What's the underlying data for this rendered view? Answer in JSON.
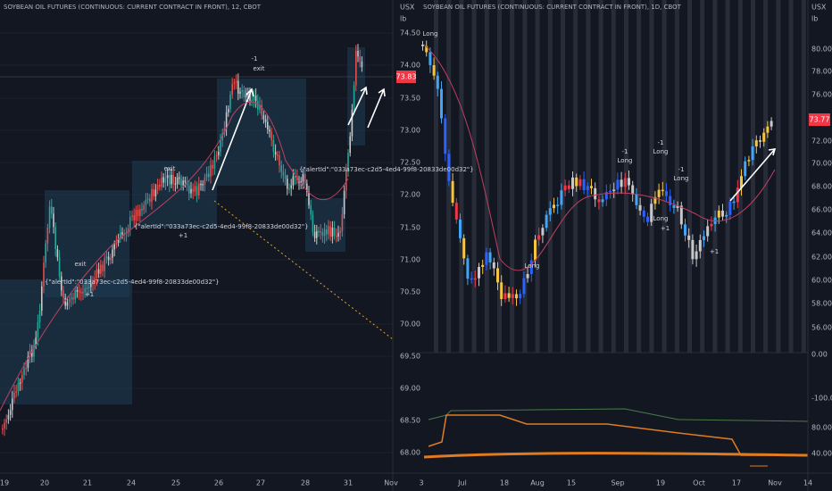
{
  "left_chart": {
    "title": "SOYBEAN OIL FUTURES (CONTINUOUS: CURRENT CONTRACT IN FRONT), 12, CBOT",
    "unit": "USX",
    "unit2": "lb",
    "price_axis": [
      "74.50",
      "74.00",
      "73.50",
      "73.00",
      "72.50",
      "72.00",
      "71.50",
      "71.00",
      "70.50",
      "70.00",
      "69.50",
      "69.00",
      "68.50",
      "68.00"
    ],
    "price_tag": "73.83",
    "time_axis": [
      "19",
      "20",
      "21",
      "24",
      "25",
      "26",
      "27",
      "28",
      "31",
      "Nov"
    ],
    "annotations": [
      "-1",
      "exit",
      "exit",
      "exit",
      "{\"alertId\":\"033a73ec-c2d5-4ed4-99f8-20833de00d32\"}",
      "{\"alertId\":\"033a73ec-c2d5-4ed4-99f8-20833de00d32\"}",
      "{\"alertId\":\"033a73ec-c2d5-4ed4-99f8-20833de00d32\"}",
      "+1",
      "+1"
    ]
  },
  "right_chart": {
    "title": "SOYBEAN OIL FUTURES (CONTINUOUS: CURRENT CONTRACT IN FRONT), 1D, CBOT",
    "unit": "USX",
    "unit2": "lb",
    "price_axis": [
      "80.00",
      "78.00",
      "76.00",
      "72.00",
      "70.00",
      "68.00",
      "66.00",
      "64.00",
      "62.00",
      "60.00",
      "58.00",
      "56.00"
    ],
    "price_tag": "73.77",
    "indicator_axis": [
      "0.00",
      "-100.00",
      "80.00",
      "40.00"
    ],
    "time_axis": [
      "3",
      "Jul",
      "18",
      "Aug",
      "15",
      "Sep",
      "19",
      "Oct",
      "17",
      "Nov",
      "14"
    ],
    "annotations": [
      "Long",
      "Long",
      "-1",
      "Long",
      "-1",
      "Long",
      "-1",
      "Long",
      "+1",
      "+1",
      "Long"
    ]
  }
}
